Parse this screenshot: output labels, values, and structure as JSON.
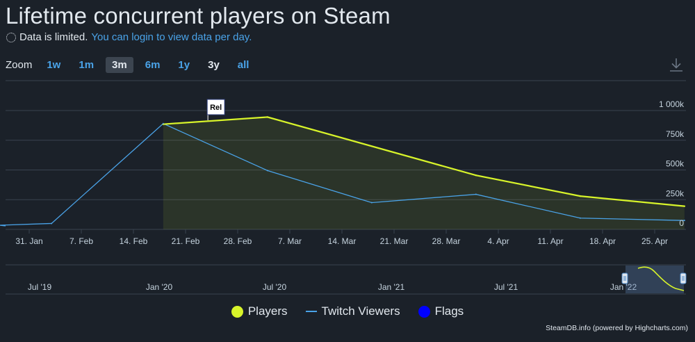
{
  "header": {
    "title": "Lifetime concurrent players on Steam",
    "notice_text": "Data is limited.",
    "notice_link": "You can login to view data per day."
  },
  "zoom": {
    "label": "Zoom",
    "buttons": [
      "1w",
      "1m",
      "3m",
      "6m",
      "1y",
      "3y",
      "all"
    ],
    "active": "3m",
    "plain": "3y"
  },
  "colors": {
    "players": "#d8f42a",
    "twitch": "#4aa3e8",
    "flags": "#0000ff",
    "background": "#1b2129",
    "grid": "#3a4350"
  },
  "chart_data": {
    "type": "line",
    "title": "Lifetime concurrent players on Steam",
    "x_ticks": [
      "31. Jan",
      "7. Feb",
      "14. Feb",
      "21. Feb",
      "28. Feb",
      "7. Mar",
      "14. Mar",
      "21. Mar",
      "28. Mar",
      "4. Apr",
      "11. Apr",
      "18. Apr",
      "25. Apr"
    ],
    "y_ticks": [
      "0",
      "250k",
      "500k",
      "750k",
      "1 000k"
    ],
    "ylim": [
      0,
      1000000
    ],
    "grid": true,
    "legend_placement": "bottom-center",
    "series": [
      {
        "name": "Players",
        "type": "area",
        "points": [
          {
            "date": "2020-02-18",
            "value": 885000
          },
          {
            "date": "2020-03-03",
            "value": 945000
          },
          {
            "date": "2020-03-31",
            "value": 455000
          },
          {
            "date": "2020-04-14",
            "value": 280000
          },
          {
            "date": "2020-04-28",
            "value": 195000
          }
        ]
      },
      {
        "name": "Twitch Viewers",
        "type": "line",
        "points": [
          {
            "date": "2020-01-27",
            "value": 35000
          },
          {
            "date": "2020-02-03",
            "value": 50000
          },
          {
            "date": "2020-02-18",
            "value": 890000
          },
          {
            "date": "2020-03-03",
            "value": 495000
          },
          {
            "date": "2020-03-17",
            "value": 225000
          },
          {
            "date": "2020-03-31",
            "value": 295000
          },
          {
            "date": "2020-04-14",
            "value": 95000
          },
          {
            "date": "2020-04-28",
            "value": 75000
          }
        ]
      }
    ],
    "flag": {
      "label": "Rel",
      "date": "2020-02-24"
    },
    "navigator_ticks": [
      "Jul '19",
      "Jan '20",
      "Jul '20",
      "Jan '21",
      "Jul '21",
      "Jan '22"
    ],
    "legend": [
      "Players",
      "Twitch Viewers",
      "Flags"
    ]
  },
  "credits": "SteamDB.info (powered by Highcharts.com)"
}
